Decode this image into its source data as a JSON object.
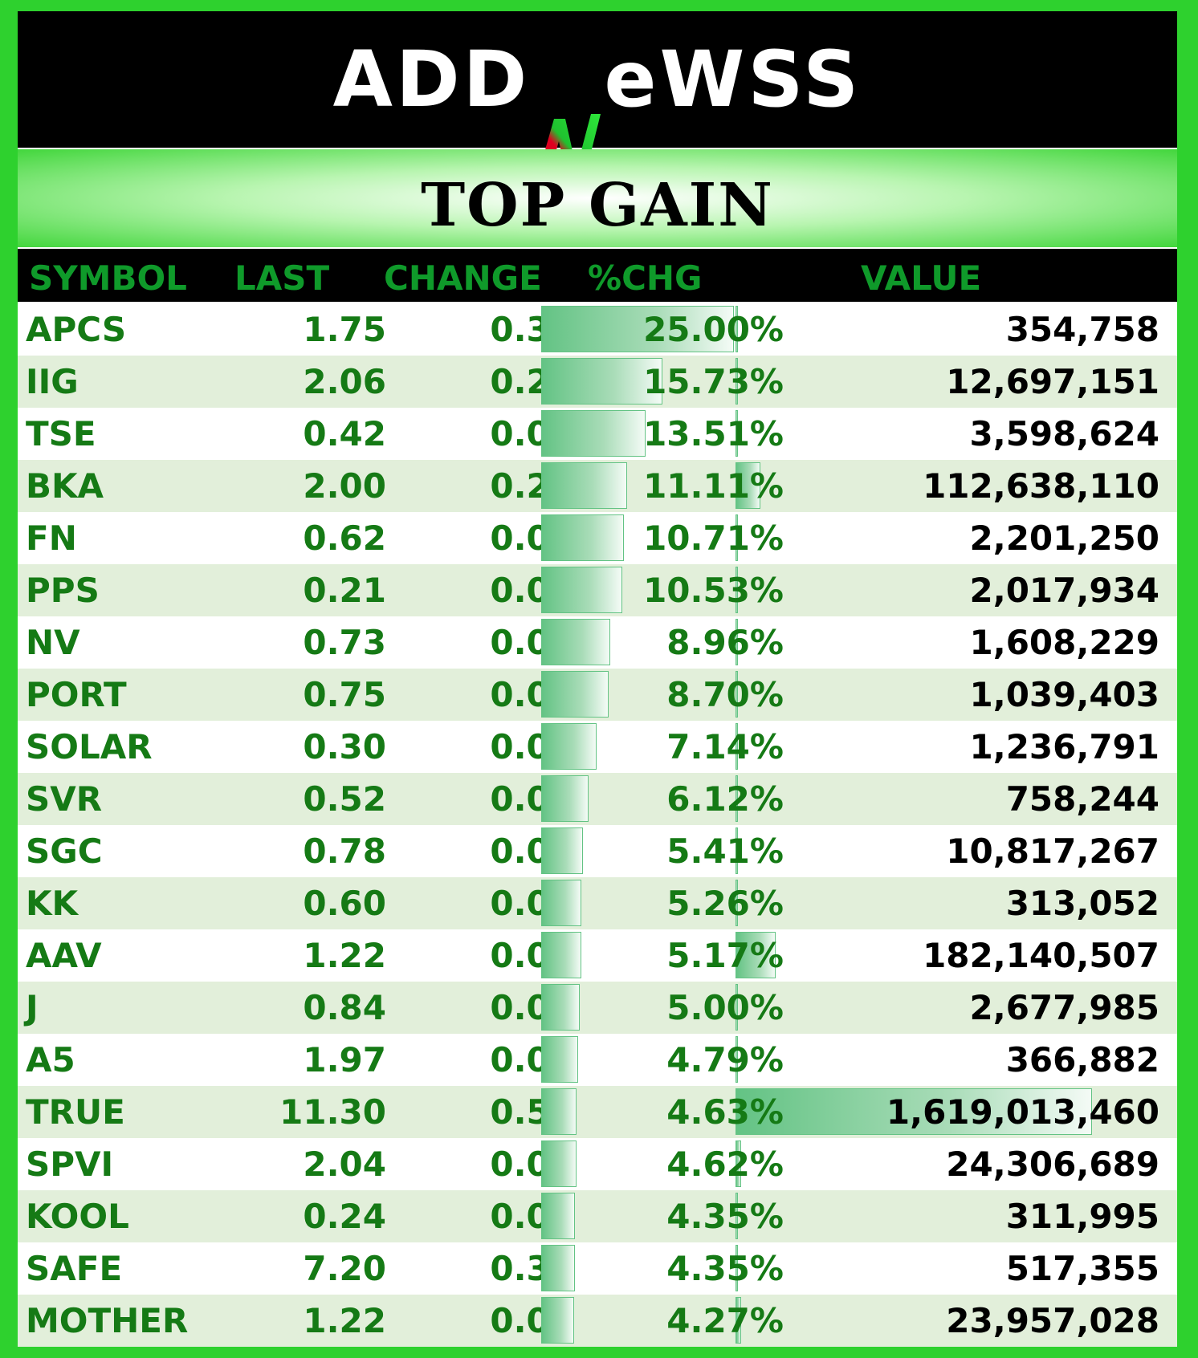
{
  "logo": {
    "text_before": "ADD",
    "text_after": "eWSS",
    "mark": "N"
  },
  "title": "TOP GAIN",
  "columns": [
    "SYMBOL",
    "LAST",
    "CHANGE",
    "%CHG",
    "VALUE"
  ],
  "colors": {
    "background": "#2ed12e",
    "header_bg": "#000000",
    "header_text": "#0f9a2a",
    "row_text": "#157a15",
    "alt_row": "#e2efda",
    "bar": "#63c384"
  },
  "rows": [
    {
      "symbol": "APCS",
      "last": "1.75",
      "change": "0.35",
      "pct": "25.00%",
      "value": "354,758",
      "pct_num": 25.0,
      "value_num": 354758
    },
    {
      "symbol": "IIG",
      "last": "2.06",
      "change": "0.28",
      "pct": "15.73%",
      "value": "12,697,151",
      "pct_num": 15.73,
      "value_num": 12697151
    },
    {
      "symbol": "TSE",
      "last": "0.42",
      "change": "0.05",
      "pct": "13.51%",
      "value": "3,598,624",
      "pct_num": 13.51,
      "value_num": 3598624
    },
    {
      "symbol": "BKA",
      "last": "2.00",
      "change": "0.20",
      "pct": "11.11%",
      "value": "112,638,110",
      "pct_num": 11.11,
      "value_num": 112638110
    },
    {
      "symbol": "FN",
      "last": "0.62",
      "change": "0.06",
      "pct": "10.71%",
      "value": "2,201,250",
      "pct_num": 10.71,
      "value_num": 2201250
    },
    {
      "symbol": "PPS",
      "last": "0.21",
      "change": "0.02",
      "pct": "10.53%",
      "value": "2,017,934",
      "pct_num": 10.53,
      "value_num": 2017934
    },
    {
      "symbol": "NV",
      "last": "0.73",
      "change": "0.06",
      "pct": "8.96%",
      "value": "1,608,229",
      "pct_num": 8.96,
      "value_num": 1608229
    },
    {
      "symbol": "PORT",
      "last": "0.75",
      "change": "0.06",
      "pct": "8.70%",
      "value": "1,039,403",
      "pct_num": 8.7,
      "value_num": 1039403
    },
    {
      "symbol": "SOLAR",
      "last": "0.30",
      "change": "0.02",
      "pct": "7.14%",
      "value": "1,236,791",
      "pct_num": 7.14,
      "value_num": 1236791
    },
    {
      "symbol": "SVR",
      "last": "0.52",
      "change": "0.03",
      "pct": "6.12%",
      "value": "758,244",
      "pct_num": 6.12,
      "value_num": 758244
    },
    {
      "symbol": "SGC",
      "last": "0.78",
      "change": "0.04",
      "pct": "5.41%",
      "value": "10,817,267",
      "pct_num": 5.41,
      "value_num": 10817267
    },
    {
      "symbol": "KK",
      "last": "0.60",
      "change": "0.03",
      "pct": "5.26%",
      "value": "313,052",
      "pct_num": 5.26,
      "value_num": 313052
    },
    {
      "symbol": "AAV",
      "last": "1.22",
      "change": "0.06",
      "pct": "5.17%",
      "value": "182,140,507",
      "pct_num": 5.17,
      "value_num": 182140507
    },
    {
      "symbol": "J",
      "last": "0.84",
      "change": "0.04",
      "pct": "5.00%",
      "value": "2,677,985",
      "pct_num": 5.0,
      "value_num": 2677985
    },
    {
      "symbol": "A5",
      "last": "1.97",
      "change": "0.09",
      "pct": "4.79%",
      "value": "366,882",
      "pct_num": 4.79,
      "value_num": 366882
    },
    {
      "symbol": "TRUE",
      "last": "11.30",
      "change": "0.50",
      "pct": "4.63%",
      "value": "1,619,013,460",
      "pct_num": 4.63,
      "value_num": 1619013460
    },
    {
      "symbol": "SPVI",
      "last": "2.04",
      "change": "0.09",
      "pct": "4.62%",
      "value": "24,306,689",
      "pct_num": 4.62,
      "value_num": 24306689
    },
    {
      "symbol": "KOOL",
      "last": "0.24",
      "change": "0.01",
      "pct": "4.35%",
      "value": "311,995",
      "pct_num": 4.35,
      "value_num": 311995
    },
    {
      "symbol": "SAFE",
      "last": "7.20",
      "change": "0.30",
      "pct": "4.35%",
      "value": "517,355",
      "pct_num": 4.35,
      "value_num": 517355
    },
    {
      "symbol": "MOTHER",
      "last": "1.22",
      "change": "0.05",
      "pct": "4.27%",
      "value": "23,957,028",
      "pct_num": 4.27,
      "value_num": 23957028
    }
  ]
}
